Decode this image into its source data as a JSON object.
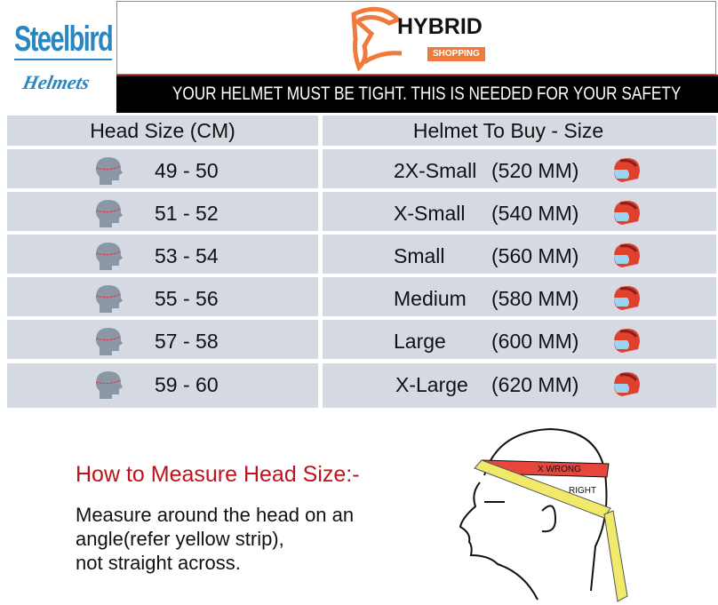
{
  "brand": {
    "steelbird_top": "Steelbird",
    "steelbird_bottom": "Helmets",
    "hybrid_title": "HYBRID",
    "hybrid_sub": "SHOPPING"
  },
  "notice": "YOUR HELMET MUST BE TIGHT. THIS IS NEEDED FOR YOUR SAFETY",
  "table": {
    "headers": [
      "Head Size (CM)",
      "Helmet To Buy - Size"
    ],
    "rows": [
      {
        "head": "49 - 50",
        "size": "2X-Small",
        "mm": "(520 MM)"
      },
      {
        "head": "51 - 52",
        "size": "X-Small",
        "mm": "(540 MM)"
      },
      {
        "head": "53 - 54",
        "size": "Small",
        "mm": "(560 MM)"
      },
      {
        "head": "55 - 56",
        "size": "Medium",
        "mm": "(580 MM)"
      },
      {
        "head": "57 - 58",
        "size": "Large",
        "mm": "(600 MM)"
      },
      {
        "head": "59 - 60",
        "size": "X-Large",
        "mm": "(620 MM)"
      }
    ]
  },
  "measure": {
    "title": "How to Measure Head Size:-",
    "lines": [
      "Measure around the head on an",
      "angle(refer yellow strip),",
      "not straight across."
    ],
    "wrong": "X WRONG",
    "right": "RIGHT"
  },
  "colors": {
    "row_bg": "#d5dae2",
    "accent_red": "#c0121b",
    "brand_blue": "#2a86c0",
    "brand_orange": "#f07a3c"
  }
}
